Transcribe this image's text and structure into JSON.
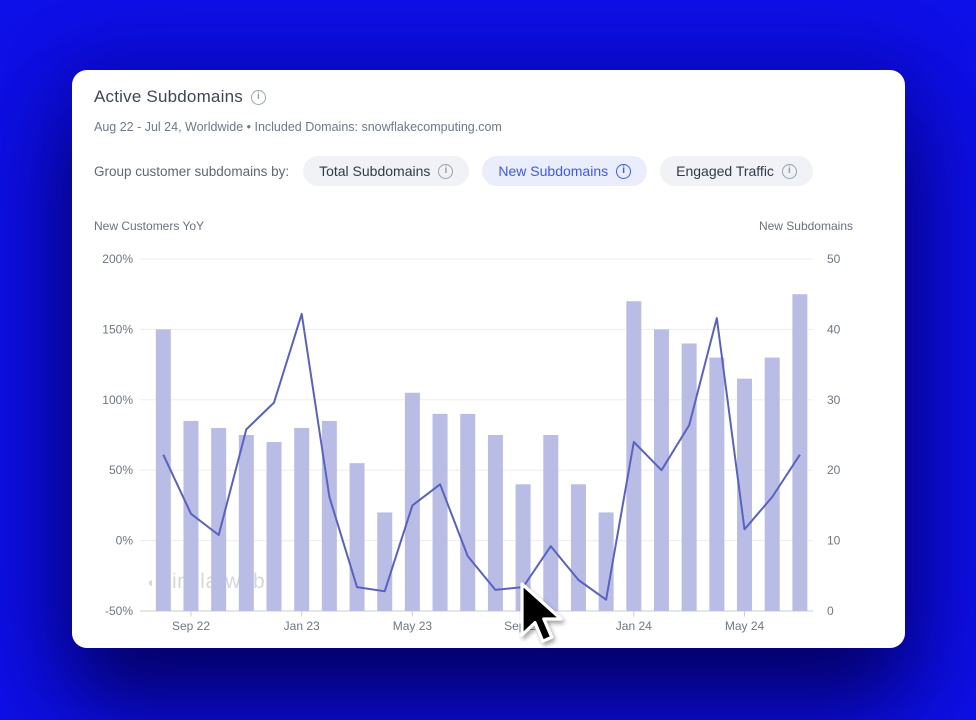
{
  "card": {
    "title": "Active Subdomains",
    "subtitle": "Aug 22 - Jul 24, Worldwide • Included Domains: snowflakecomputing.com",
    "group_label": "Group customer subdomains by:",
    "info_glyph": "i",
    "toggles": [
      {
        "label": "Total Subdomains",
        "selected": false
      },
      {
        "label": "New Subdomains",
        "selected": true
      },
      {
        "label": "Engaged Traffic",
        "selected": false
      }
    ]
  },
  "watermark": {
    "text": "similarweb"
  },
  "colors": {
    "background": "#0f11ee",
    "bar": "#b9bde6",
    "line": "#5a62c0",
    "grid": "#ededf0",
    "axis_line": "#c9cdd2",
    "axis_text": "#6d7784",
    "selected_pill_text": "#3c5af0",
    "selected_pill_bg": "#e9edfc"
  },
  "chart_data": {
    "type": "bar",
    "subtype": "combo-bar-line",
    "categories": [
      "Aug 22",
      "Sep 22",
      "Oct 22",
      "Nov 22",
      "Dec 22",
      "Jan 23",
      "Feb 23",
      "Mar 23",
      "Apr 23",
      "May 23",
      "Jun 23",
      "Jul 23",
      "Aug 23",
      "Sep 23",
      "Oct 23",
      "Nov 23",
      "Dec 23",
      "Jan 24",
      "Feb 24",
      "Mar 24",
      "Apr 24",
      "May 24",
      "Jun 24",
      "Jul 24"
    ],
    "series": [
      {
        "name": "New Subdomains",
        "type": "bar",
        "axis": "right",
        "color": "#b9bde6",
        "values": [
          40,
          27,
          26,
          25,
          24,
          26,
          27,
          21,
          14,
          31,
          28,
          28,
          25,
          18,
          25,
          18,
          14,
          44,
          40,
          38,
          36,
          33,
          36,
          45
        ]
      },
      {
        "name": "New Customers YoY",
        "type": "line",
        "axis": "left",
        "color": "#5a62c0",
        "values": [
          61,
          19,
          4,
          79,
          98,
          161,
          31,
          -33,
          -36,
          25,
          40,
          -11,
          -35,
          -33,
          -4,
          -28,
          -42,
          70,
          50,
          82,
          158,
          8,
          31,
          61
        ]
      }
    ],
    "left_axis": {
      "title": "New Customers YoY",
      "ticks": [
        "200%",
        "150%",
        "100%",
        "50%",
        "0%",
        "-50%"
      ],
      "min": -50,
      "max": 200
    },
    "right_axis": {
      "title": "New Subdomains",
      "ticks": [
        "50",
        "40",
        "30",
        "20",
        "10",
        "0"
      ],
      "min": 0,
      "max": 50
    },
    "x_tick_labels": [
      {
        "index": 1,
        "label": "Sep 22"
      },
      {
        "index": 5,
        "label": "Jan 23"
      },
      {
        "index": 9,
        "label": "May 23"
      },
      {
        "index": 13,
        "label": "Sep 23"
      },
      {
        "index": 17,
        "label": "Jan 24"
      },
      {
        "index": 21,
        "label": "May 24"
      }
    ],
    "grid": true,
    "legend_position": "none"
  }
}
